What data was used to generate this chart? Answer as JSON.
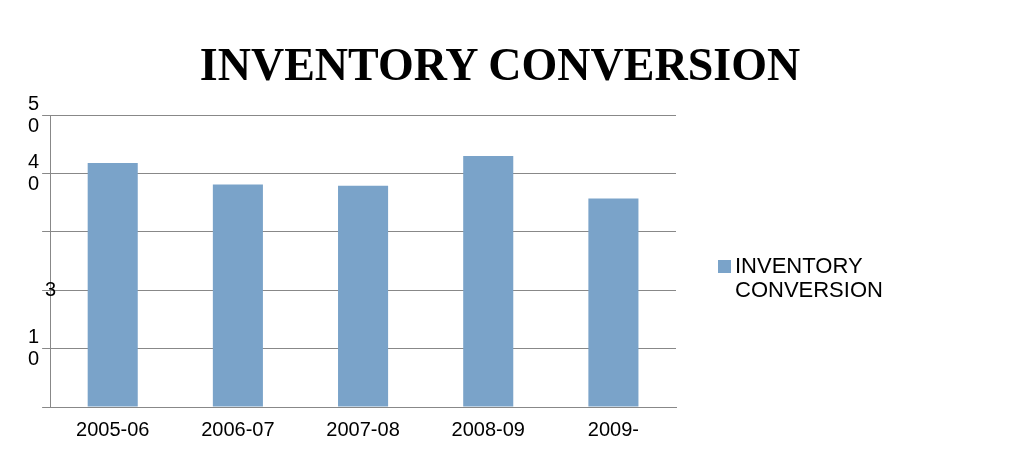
{
  "chart_data": {
    "type": "bar",
    "title": "INVENTORY CONVERSION",
    "categories": [
      "2005-06",
      "2006-07",
      "2007-08",
      "2008-09",
      "2009-"
    ],
    "series": [
      {
        "name": "INVENTORY CONVERSION",
        "color": "#7aa3c9",
        "values": [
          41.8,
          38.1,
          37.9,
          43.0,
          35.7
        ]
      }
    ],
    "ylim": [
      0,
      50
    ],
    "yticks": [
      {
        "value": 0,
        "label": null
      },
      {
        "value": 10,
        "label": "10"
      },
      {
        "value": 20,
        "label": null
      },
      {
        "value": 30,
        "label": null
      },
      {
        "value": 40,
        "label": "40"
      },
      {
        "value": 50,
        "label": "50"
      }
    ],
    "annotations": [
      "3"
    ],
    "grid": "y",
    "legend": "right"
  }
}
